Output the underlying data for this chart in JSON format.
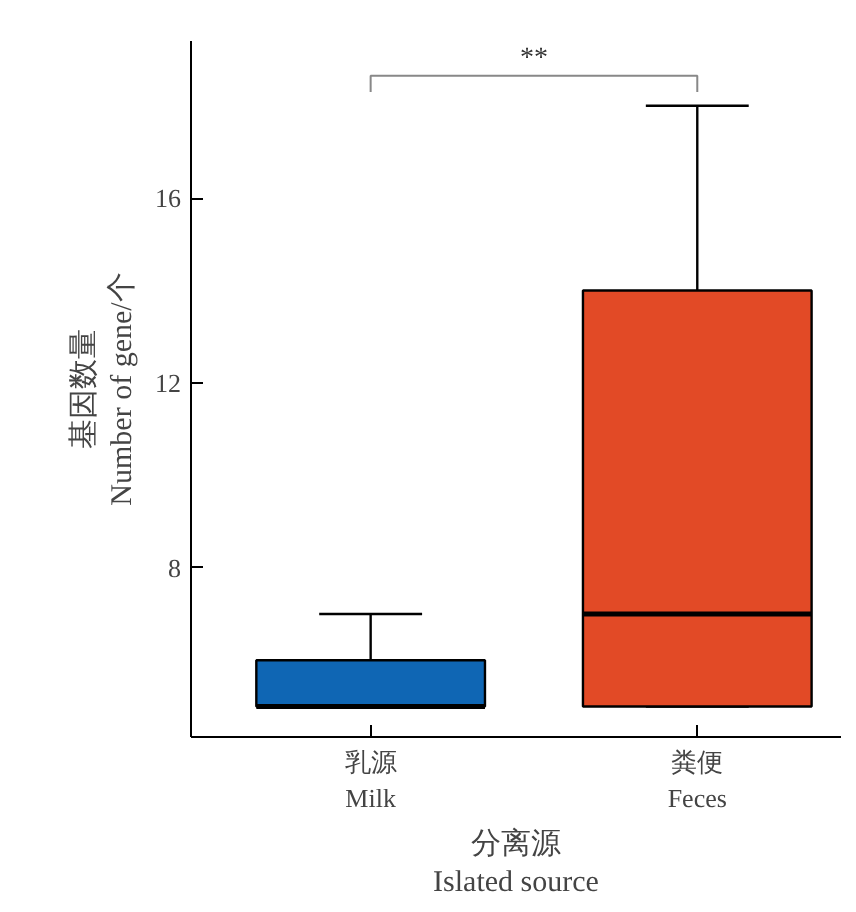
{
  "chart_data": {
    "type": "box",
    "categories": [
      "乳源\nMilk",
      "粪便\nFeces"
    ],
    "xlabel": "分离源\nIslated source",
    "ylabel": "基因数量\nNumber of gene/个",
    "ylim": [
      4.34,
      19.4
    ],
    "yticks": [
      8,
      12,
      16
    ],
    "grid": false,
    "annotations": [
      "**"
    ],
    "series": [
      {
        "color": "#0f66b4",
        "boxes": [
          {
            "low": 5,
            "q1": 5,
            "median": 5,
            "q3": 6,
            "high": 7
          },
          null
        ]
      },
      {
        "color": "#e24a26",
        "boxes": [
          null,
          {
            "low": 5,
            "q1": 5,
            "median": 7,
            "q3": 14,
            "high": 18
          }
        ]
      }
    ]
  }
}
